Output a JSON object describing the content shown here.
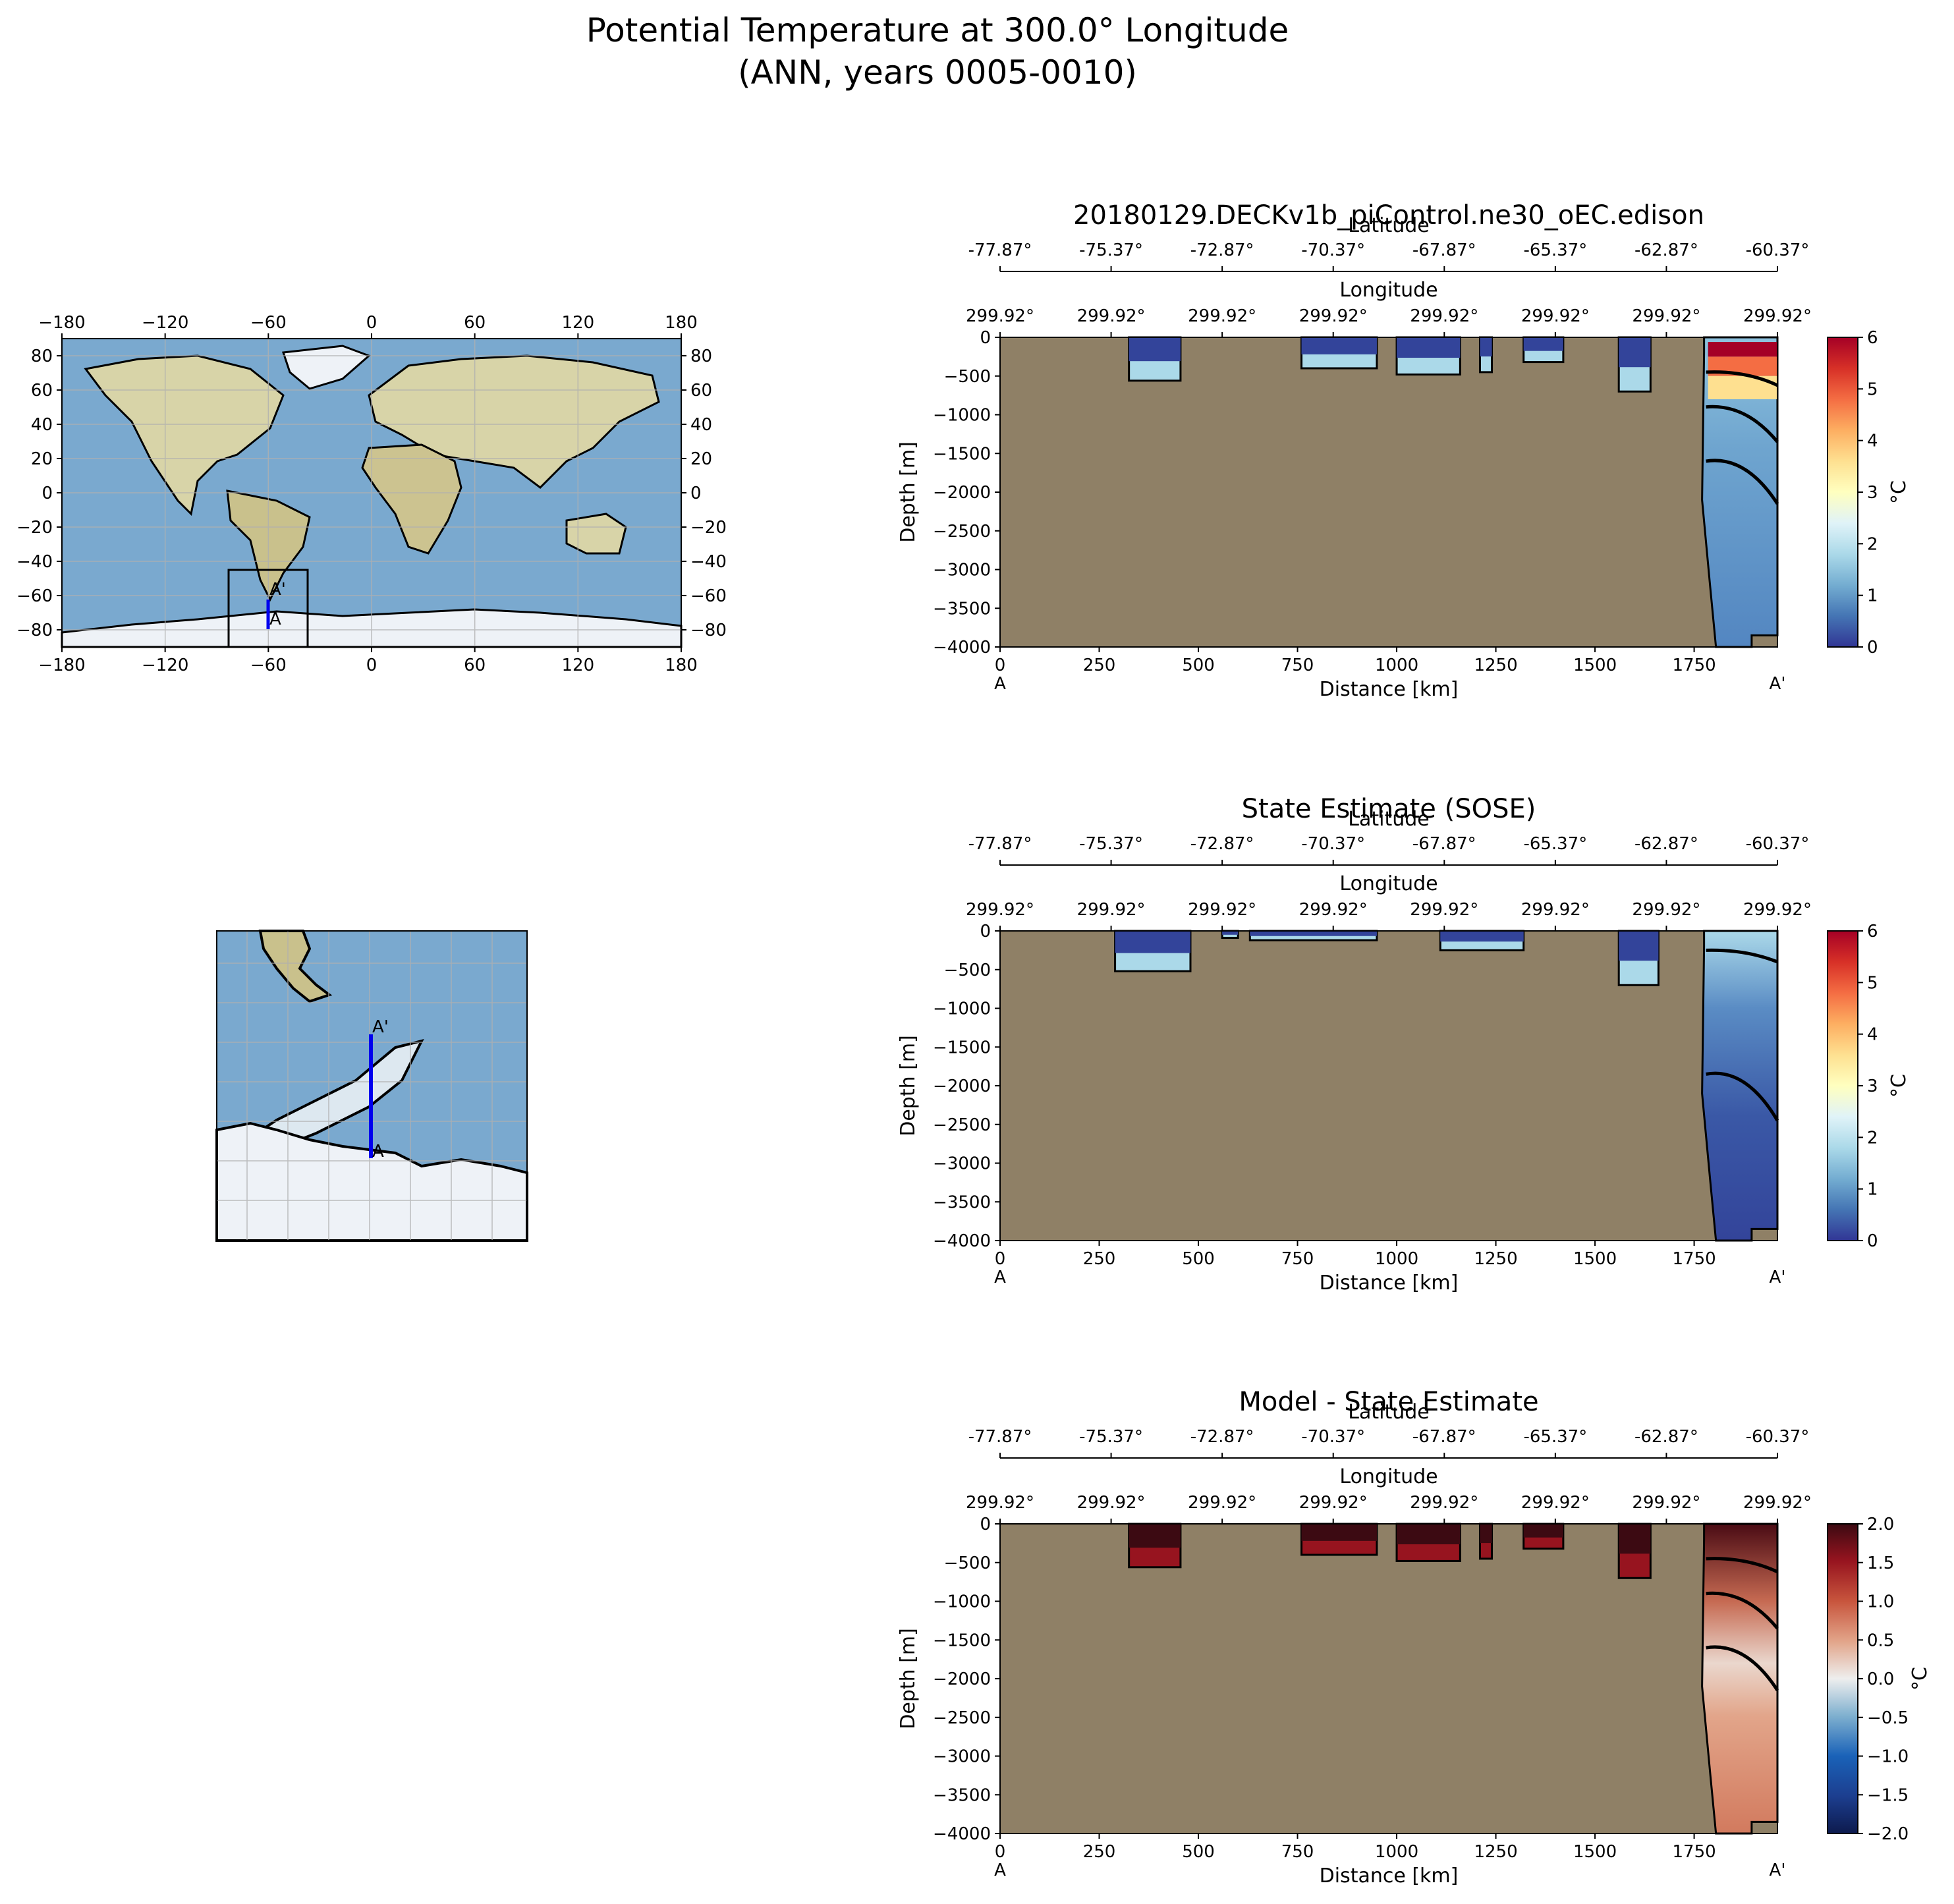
{
  "figure": {
    "title_line1": "Potential Temperature at 300.0° Longitude",
    "title_line2": "(ANN, years 0005-0010)"
  },
  "colors": {
    "land": "#8f8066",
    "ocean_map": "#7aa9cf",
    "land_map": "#d8d4a8",
    "ice": "#eef2f7",
    "transect": "#0000ee"
  },
  "maps": {
    "global": {
      "lon_ticks": [
        "−180",
        "−120",
        "−60",
        "0",
        "60",
        "120",
        "180"
      ],
      "lat_ticks": [
        "80",
        "60",
        "40",
        "20",
        "0",
        "−20",
        "−40",
        "−60",
        "−80"
      ],
      "inset_box": {
        "lon": [
          -83,
          -37
        ],
        "lat": [
          -88,
          -45
        ]
      }
    },
    "transect_labels": {
      "start": "A",
      "end": "A'"
    }
  },
  "chart_data": [
    {
      "type": "heatmap",
      "title": "20180129.DECKv1b_piControl.ne30_oEC.edison",
      "xlabel": "Distance [km]",
      "ylabel": "Depth [m]",
      "xlim": [
        0,
        1960
      ],
      "ylim": [
        -4000,
        0
      ],
      "x_ticks": [
        "0",
        "250",
        "500",
        "750",
        "1000",
        "1250",
        "1500",
        "1750"
      ],
      "y_ticks": [
        "0",
        "−500",
        "−1000",
        "−1500",
        "−2000",
        "−2500",
        "−3000",
        "−3500",
        "−4000"
      ],
      "start_label": "A",
      "end_label": "A'",
      "top_axis1_label": "Latitude",
      "top_axis1_ticks": [
        "-77.87°",
        "-75.37°",
        "-72.87°",
        "-70.37°",
        "-67.87°",
        "-65.37°",
        "-62.87°",
        "-60.37°"
      ],
      "top_axis2_label": "Longitude",
      "top_axis2_ticks": [
        "299.92°",
        "299.92°",
        "299.92°",
        "299.92°",
        "299.92°",
        "299.92°",
        "299.92°",
        "299.92°"
      ],
      "colorbar": {
        "label": "°C",
        "range": [
          0,
          6
        ],
        "ticks": [
          "0",
          "1",
          "2",
          "3",
          "4",
          "5",
          "6"
        ],
        "colormap": "RdYlBu_r"
      },
      "contour_levels": [
        0,
        0.5,
        1,
        2,
        3,
        4,
        5,
        6
      ]
    },
    {
      "type": "heatmap",
      "title": "State Estimate (SOSE)",
      "xlabel": "Distance [km]",
      "ylabel": "Depth [m]",
      "xlim": [
        0,
        1960
      ],
      "ylim": [
        -4000,
        0
      ],
      "x_ticks": [
        "0",
        "250",
        "500",
        "750",
        "1000",
        "1250",
        "1500",
        "1750"
      ],
      "y_ticks": [
        "0",
        "−500",
        "−1000",
        "−1500",
        "−2000",
        "−2500",
        "−3000",
        "−3500",
        "−4000"
      ],
      "start_label": "A",
      "end_label": "A'",
      "top_axis1_label": "Latitude",
      "top_axis1_ticks": [
        "-77.87°",
        "-75.37°",
        "-72.87°",
        "-70.37°",
        "-67.87°",
        "-65.37°",
        "-62.87°",
        "-60.37°"
      ],
      "top_axis2_label": "Longitude",
      "top_axis2_ticks": [
        "299.92°",
        "299.92°",
        "299.92°",
        "299.92°",
        "299.92°",
        "299.92°",
        "299.92°",
        "299.92°"
      ],
      "colorbar": {
        "label": "°C",
        "range": [
          0,
          6
        ],
        "ticks": [
          "0",
          "1",
          "2",
          "3",
          "4",
          "5",
          "6"
        ],
        "colormap": "RdYlBu_r"
      },
      "contour_levels": [
        0,
        0.5,
        1,
        2,
        3,
        4,
        5,
        6
      ]
    },
    {
      "type": "heatmap",
      "title": "Model - State Estimate",
      "xlabel": "Distance [km]",
      "ylabel": "Depth [m]",
      "xlim": [
        0,
        1960
      ],
      "ylim": [
        -4000,
        0
      ],
      "x_ticks": [
        "0",
        "250",
        "500",
        "750",
        "1000",
        "1250",
        "1500",
        "1750"
      ],
      "y_ticks": [
        "0",
        "−500",
        "−1000",
        "−1500",
        "−2000",
        "−2500",
        "−3000",
        "−3500",
        "−4000"
      ],
      "start_label": "A",
      "end_label": "A'",
      "top_axis1_label": "Latitude",
      "top_axis1_ticks": [
        "-77.87°",
        "-75.37°",
        "-72.87°",
        "-70.37°",
        "-67.87°",
        "-65.37°",
        "-62.87°",
        "-60.37°"
      ],
      "top_axis2_label": "Longitude",
      "top_axis2_ticks": [
        "299.92°",
        "299.92°",
        "299.92°",
        "299.92°",
        "299.92°",
        "299.92°",
        "299.92°",
        "299.92°"
      ],
      "colorbar": {
        "label": "°C",
        "range": [
          -2,
          2
        ],
        "ticks": [
          "−2.0",
          "−1.5",
          "−1.0",
          "−0.5",
          "0.0",
          "0.5",
          "1.0",
          "1.5",
          "2.0"
        ],
        "colormap": "RdBu_r"
      },
      "contour_levels": [
        -2,
        -1.5,
        -1,
        -0.5,
        0,
        0.5,
        1,
        1.5,
        2
      ]
    }
  ]
}
